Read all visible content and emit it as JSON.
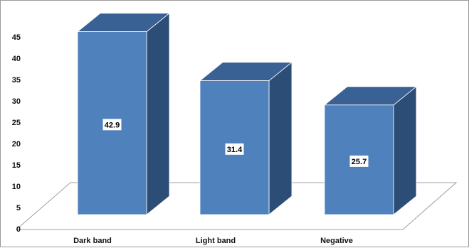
{
  "chart_data": {
    "type": "bar",
    "categories": [
      "Dark band",
      "Light band",
      "Negative"
    ],
    "values": [
      42.9,
      31.4,
      25.7
    ],
    "data_labels": [
      "42.9",
      "31.4",
      "25.7"
    ],
    "title": "",
    "xlabel": "",
    "ylabel": "",
    "ylim": [
      0,
      45
    ],
    "yticks": [
      0,
      5,
      10,
      15,
      20,
      25,
      30,
      35,
      40,
      45
    ],
    "grid": false,
    "legend": "none",
    "style": "3d-column",
    "colors": {
      "front": "#4f81bd",
      "side": "#2c4d75",
      "top": "#3a6194",
      "edge": "#ffffff",
      "floor_edge": "#a0a0a0"
    }
  }
}
